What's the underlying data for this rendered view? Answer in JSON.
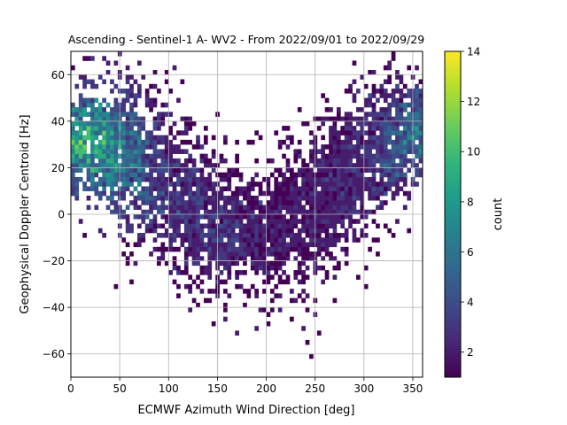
{
  "chart_data": {
    "type": "heatmap",
    "title": "Ascending - Sentinel-1 A- WV2 - From 2022/09/01 to 2022/09/29",
    "xlabel": "ECMWF Azimuth Wind Direction [deg]",
    "ylabel": "Geophysical Doppler Centroid [Hz]",
    "xlim": [
      0,
      360
    ],
    "ylim": [
      -70,
      70
    ],
    "xticks": [
      "0",
      "50",
      "100",
      "150",
      "200",
      "250",
      "300",
      "350"
    ],
    "yticks": [
      "−60",
      "−40",
      "−20",
      "0",
      "20",
      "40",
      "60"
    ],
    "grid": true,
    "colorbar": {
      "label": "count",
      "range": [
        1,
        14
      ],
      "ticks": [
        "2",
        "4",
        "6",
        "8",
        "10",
        "12",
        "14"
      ],
      "colormap": "viridis"
    },
    "trend_note": "2-D histogram; density follows a cosine-like curve: centered near +30 Hz at 0–40 deg and 330–360 deg, dropping to about −10 Hz near 150–200 deg",
    "density_centers": [
      {
        "x": 25,
        "y": 32,
        "count": 9
      },
      {
        "x": 60,
        "y": 25,
        "count": 6
      },
      {
        "x": 100,
        "y": 12,
        "count": 3
      },
      {
        "x": 150,
        "y": -5,
        "count": 3
      },
      {
        "x": 200,
        "y": -8,
        "count": 2
      },
      {
        "x": 250,
        "y": 5,
        "count": 2
      },
      {
        "x": 300,
        "y": 25,
        "count": 3
      },
      {
        "x": 350,
        "y": 35,
        "count": 6
      }
    ]
  }
}
